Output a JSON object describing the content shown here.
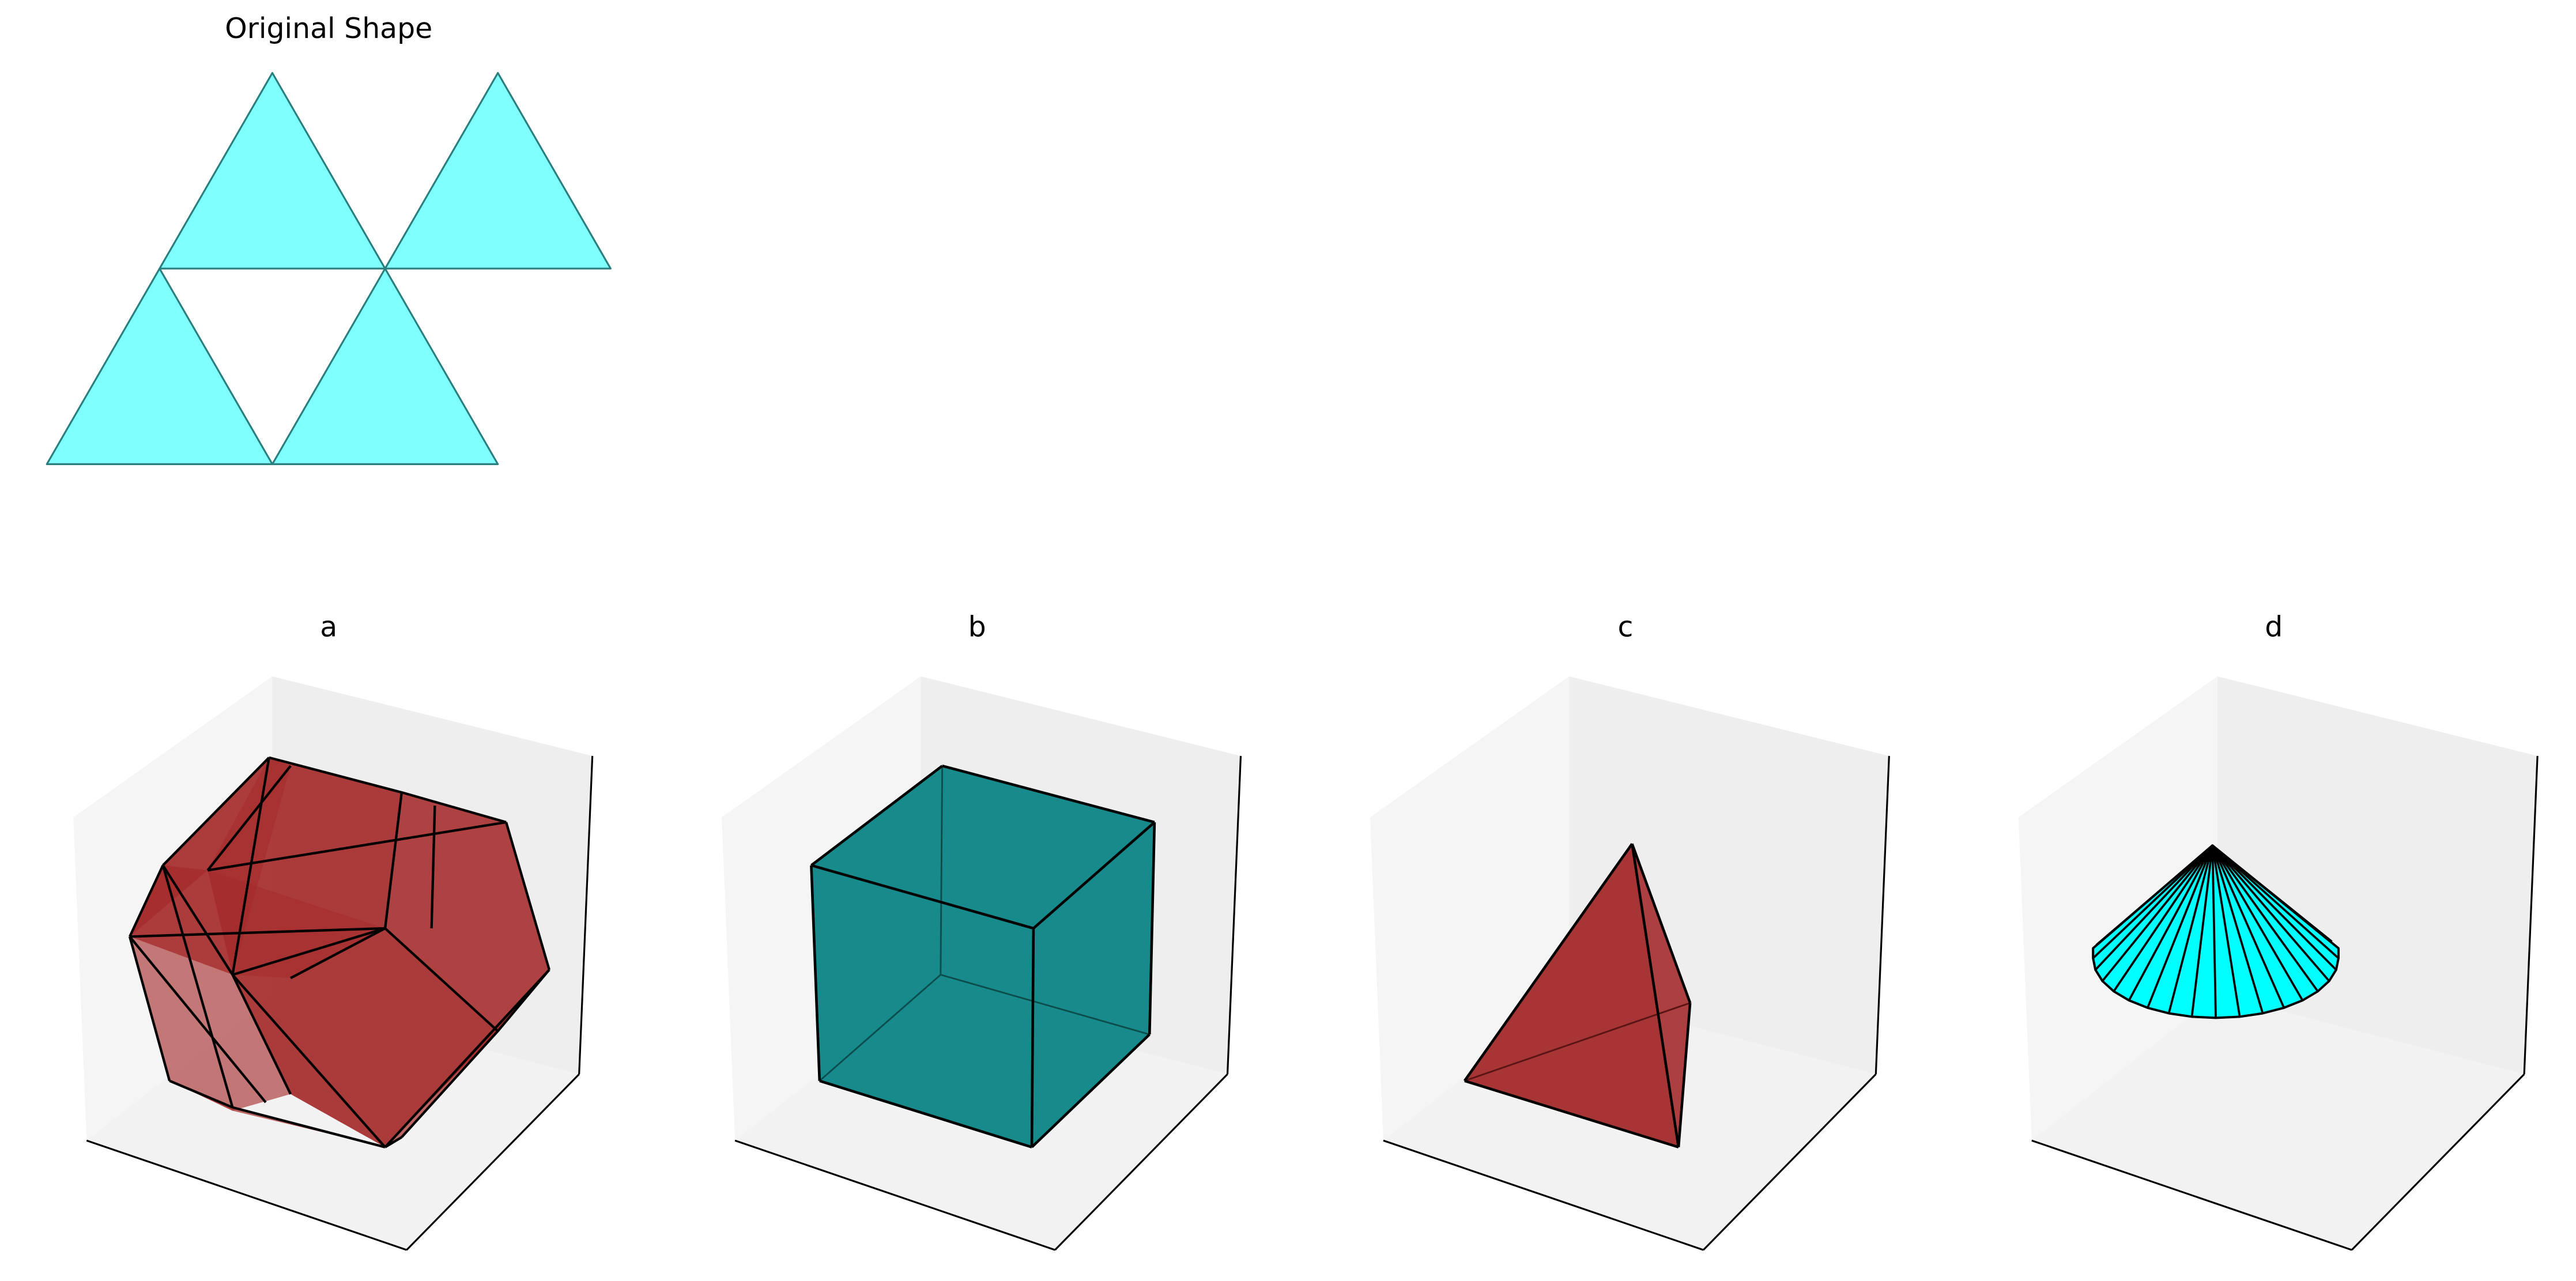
{
  "original": {
    "title": "Original Shape",
    "fill": "#80ffff",
    "stroke": "#2a7e7e"
  },
  "options": [
    {
      "label": "a",
      "shape": "truncated-polyhedron",
      "fill": "#a52a2a"
    },
    {
      "label": "b",
      "shape": "cube",
      "fill": "#178b8b"
    },
    {
      "label": "c",
      "shape": "tetrahedron",
      "fill": "#a83535"
    },
    {
      "label": "d",
      "shape": "cone",
      "fill": "#00ffff"
    }
  ],
  "colors": {
    "pane_left": "#f5f5f5",
    "pane_right": "#eeeeee",
    "pane_floor": "#f2f2f2",
    "edge": "#000000"
  }
}
